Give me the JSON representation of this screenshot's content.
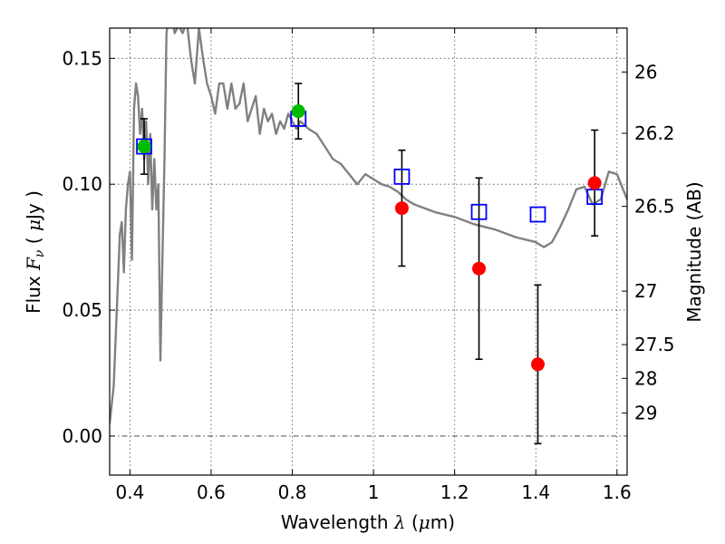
{
  "chart_data": {
    "type": "scatter",
    "x_axis": {
      "label_prefix": "Wavelength  ",
      "label_symbol": "λ",
      "label_unit_open": " (",
      "label_unit_symbol": "μ",
      "label_unit_rest": "m)",
      "range": [
        0.35,
        1.625
      ],
      "ticks": [
        0.4,
        0.6,
        0.8,
        1.0,
        1.2,
        1.4,
        1.6
      ],
      "tick_labels": [
        "0.4",
        "0.6",
        "0.8",
        "1",
        "1.2",
        "1.4",
        "1.6"
      ]
    },
    "y_axis": {
      "label_prefix": "Flux  ",
      "label_symbol": "F",
      "label_sub": "ν",
      "label_mid": "  (  ",
      "label_unit_symbol": "μ",
      "label_unit_rest": "Jy )",
      "range": [
        -0.0155,
        0.162
      ],
      "ticks": [
        0.0,
        0.05,
        0.1,
        0.15
      ],
      "tick_labels": [
        "0.00",
        "0.05",
        "0.10",
        "0.15"
      ]
    },
    "y2_axis": {
      "label": "Magnitude (AB)",
      "ticks": [
        26,
        26.2,
        26.5,
        27,
        27.5,
        28,
        29
      ],
      "tick_labels": [
        "26",
        "26.2",
        "26.5",
        "27",
        "27.5",
        "28",
        "29"
      ],
      "zero_point_uJy": 3631000000
    },
    "grid": true,
    "zero_line": true,
    "template_spectrum": {
      "color": "#808080",
      "x": [
        0.35,
        0.36,
        0.37,
        0.375,
        0.38,
        0.385,
        0.39,
        0.395,
        0.4,
        0.405,
        0.41,
        0.415,
        0.42,
        0.425,
        0.43,
        0.435,
        0.44,
        0.445,
        0.45,
        0.455,
        0.46,
        0.465,
        0.47,
        0.475,
        0.48,
        0.485,
        0.49,
        0.5,
        0.51,
        0.52,
        0.53,
        0.54,
        0.55,
        0.56,
        0.57,
        0.58,
        0.59,
        0.6,
        0.61,
        0.62,
        0.63,
        0.64,
        0.65,
        0.66,
        0.67,
        0.68,
        0.69,
        0.7,
        0.71,
        0.72,
        0.73,
        0.74,
        0.75,
        0.76,
        0.77,
        0.78,
        0.79,
        0.8,
        0.81,
        0.82,
        0.84,
        0.86,
        0.88,
        0.9,
        0.92,
        0.94,
        0.96,
        0.98,
        1.0,
        1.02,
        1.04,
        1.06,
        1.08,
        1.1,
        1.15,
        1.2,
        1.25,
        1.3,
        1.35,
        1.4,
        1.42,
        1.44,
        1.46,
        1.48,
        1.5,
        1.52,
        1.54,
        1.56,
        1.58,
        1.6,
        1.625
      ],
      "y": [
        0.005,
        0.02,
        0.06,
        0.08,
        0.085,
        0.065,
        0.09,
        0.1,
        0.105,
        0.07,
        0.13,
        0.14,
        0.135,
        0.12,
        0.13,
        0.11,
        0.125,
        0.1,
        0.12,
        0.09,
        0.11,
        0.09,
        0.1,
        0.03,
        0.07,
        0.11,
        0.16,
        0.17,
        0.16,
        0.163,
        0.16,
        0.165,
        0.15,
        0.14,
        0.162,
        0.15,
        0.14,
        0.135,
        0.128,
        0.14,
        0.14,
        0.13,
        0.14,
        0.13,
        0.132,
        0.14,
        0.125,
        0.13,
        0.135,
        0.12,
        0.13,
        0.125,
        0.128,
        0.12,
        0.125,
        0.122,
        0.128,
        0.125,
        0.122,
        0.125,
        0.122,
        0.12,
        0.115,
        0.11,
        0.108,
        0.104,
        0.1,
        0.104,
        0.102,
        0.1,
        0.099,
        0.097,
        0.094,
        0.092,
        0.089,
        0.087,
        0.084,
        0.082,
        0.079,
        0.077,
        0.075,
        0.077,
        0.083,
        0.09,
        0.098,
        0.099,
        0.092,
        0.094,
        0.105,
        0.104,
        0.094
      ]
    },
    "series": [
      {
        "marker": "open-square",
        "color": "#0000ff",
        "x": [
          0.435,
          0.815,
          1.07,
          1.26,
          1.405,
          1.545
        ],
        "y": [
          0.115,
          0.126,
          0.103,
          0.089,
          0.088,
          0.095
        ]
      },
      {
        "marker": "filled-circle",
        "color": "#00bb00",
        "x": [
          0.435,
          0.815
        ],
        "y": [
          0.115,
          0.129
        ],
        "err": [
          0.011,
          0.011
        ]
      },
      {
        "marker": "filled-circle",
        "color": "#ff0000",
        "x": [
          1.07,
          1.26,
          1.405,
          1.545
        ],
        "y": [
          0.0905,
          0.0665,
          0.0285,
          0.1005
        ],
        "err": [
          0.023,
          0.036,
          0.0315,
          0.021
        ]
      }
    ]
  }
}
